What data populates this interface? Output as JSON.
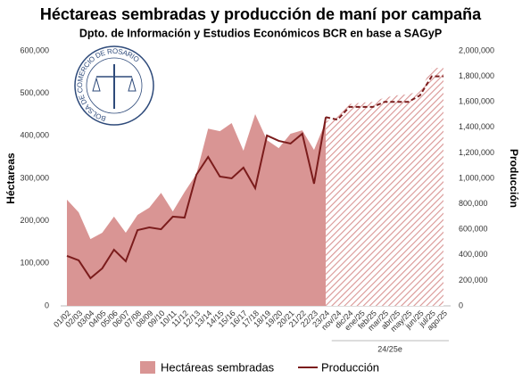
{
  "chart_data": {
    "type": "area-line",
    "title": "Héctareas sembradas y producción de maní por campaña",
    "subtitle": "Dpto. de Información y Estudios Económicos BCR en base a SAGyP",
    "logo_text": "BOLSA DE COMERCIO DE ROSARIO",
    "y_label": "Héctareas",
    "y2_label": "Producción",
    "categories": [
      "01/02",
      "02/03",
      "03/04",
      "04/05",
      "05/06",
      "06/07",
      "07/08",
      "08/09",
      "09/10",
      "10/11",
      "11/12",
      "12/13",
      "13/14",
      "14/15",
      "15/16",
      "16/17",
      "17/18",
      "18/19",
      "19/20",
      "20/21",
      "21/22",
      "22/23",
      "23/24",
      "nov/24",
      "dic/24",
      "ene/25",
      "feb/25",
      "mar/25",
      "abr/25",
      "may/25",
      "jun/25",
      "jul/25",
      "ago/25"
    ],
    "estimate": {
      "label": "24/25e",
      "from": "23/24"
    },
    "series": [
      {
        "name": "Hectáreas sembradas",
        "color": "#d99594",
        "kind": "area",
        "values": [
          250000,
          220000,
          157000,
          172000,
          210000,
          172000,
          214000,
          231000,
          266000,
          222000,
          268000,
          310000,
          417000,
          411000,
          430000,
          365000,
          451000,
          390000,
          371000,
          405000,
          413000,
          367000,
          434000,
          445000,
          475000,
          478000,
          480000,
          490000,
          495000,
          498000,
          505000,
          560000,
          560000
        ]
      },
      {
        "name": "Producción",
        "color": "#7b1c1c",
        "kind": "line",
        "axis": "y2",
        "values": [
          392000,
          357000,
          217000,
          294000,
          440000,
          350000,
          594000,
          615000,
          601000,
          700000,
          692000,
          1028000,
          1168000,
          1014000,
          1000000,
          1084000,
          923000,
          1336000,
          1294000,
          1273000,
          1350000,
          958000,
          1480000,
          1460000,
          1560000,
          1560000,
          1560000,
          1600000,
          1600000,
          1600000,
          1650000,
          1800000,
          1800000
        ]
      }
    ],
    "ylim": [
      0,
      600000
    ],
    "yticks": [
      {
        "value": 0,
        "label": "0"
      },
      {
        "value": 100000,
        "label": "100,000"
      },
      {
        "value": 200000,
        "label": "200,000"
      },
      {
        "value": 300000,
        "label": "300,000"
      },
      {
        "value": 400000,
        "label": "400,000"
      },
      {
        "value": 500000,
        "label": "500,000"
      },
      {
        "value": 600000,
        "label": "600,000"
      }
    ],
    "y2lim": [
      0,
      2000000
    ],
    "y2ticks": [
      {
        "value": 0,
        "label": "0"
      },
      {
        "value": 200000,
        "label": "200,000"
      },
      {
        "value": 400000,
        "label": "400,000"
      },
      {
        "value": 600000,
        "label": "600,000"
      },
      {
        "value": 800000,
        "label": "800,000"
      },
      {
        "value": 1000000,
        "label": "1,000,000"
      },
      {
        "value": 1200000,
        "label": "1,200,000"
      },
      {
        "value": 1400000,
        "label": "1,400,000"
      },
      {
        "value": 1600000,
        "label": "1,600,000"
      },
      {
        "value": 1800000,
        "label": "1,800,000"
      },
      {
        "value": 2000000,
        "label": "2,000,000"
      }
    ],
    "legend": "bottom"
  }
}
